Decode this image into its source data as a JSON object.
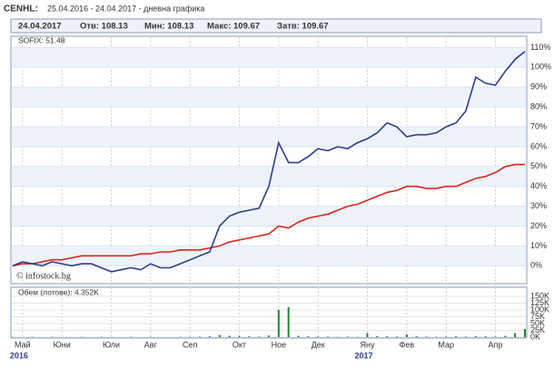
{
  "header": {
    "symbol": "CENHL:",
    "period": "25.04.2016 - 24.04.2017 - дневна графика",
    "date": "24.04.2017",
    "open": "Отв: 108.13",
    "low": "Мин: 108.13",
    "high": "Макс: 109.67",
    "close": "Затв: 109.67"
  },
  "watermark": "© infostock.bg",
  "chart_data": [
    {
      "type": "line",
      "legend_text": "SOFIX: 51.48",
      "grid": true,
      "categories": [
        null,
        "Май",
        null,
        null,
        null,
        "Юни",
        null,
        null,
        null,
        null,
        "Юли",
        null,
        null,
        null,
        "Авг",
        null,
        null,
        null,
        "Сеп",
        null,
        null,
        null,
        null,
        "Окт",
        null,
        null,
        null,
        "Ное",
        null,
        null,
        null,
        "Дек",
        null,
        null,
        null,
        null,
        "Яну",
        null,
        null,
        null,
        "Фев",
        null,
        null,
        null,
        "Мар",
        null,
        null,
        null,
        null,
        "Апр",
        null,
        null,
        null
      ],
      "year_categories": [
        null,
        "2016",
        null,
        null,
        null,
        null,
        null,
        null,
        null,
        null,
        null,
        null,
        null,
        null,
        null,
        null,
        null,
        null,
        null,
        null,
        null,
        null,
        null,
        null,
        null,
        null,
        null,
        null,
        null,
        null,
        null,
        null,
        null,
        null,
        null,
        null,
        "2017",
        null,
        null,
        null,
        null,
        null,
        null,
        null,
        null,
        null,
        null,
        null,
        null,
        null,
        null,
        null,
        null
      ],
      "ylim": [
        -9,
        112
      ],
      "yticks": [
        {
          "value": 0,
          "label": "0%"
        },
        {
          "value": 10,
          "label": "10%"
        },
        {
          "value": 20,
          "label": "20%"
        },
        {
          "value": 30,
          "label": "30%"
        },
        {
          "value": 40,
          "label": "40%"
        },
        {
          "value": 50,
          "label": "50%"
        },
        {
          "value": 60,
          "label": "60%"
        },
        {
          "value": 70,
          "label": "70%"
        },
        {
          "value": 80,
          "label": "80%"
        },
        {
          "value": 90,
          "label": "90%"
        },
        {
          "value": 100,
          "label": "100%"
        },
        {
          "value": 110,
          "label": "110%"
        }
      ],
      "series": [
        {
          "color": "#d9261c",
          "values": [
            0,
            1,
            1,
            2,
            3,
            3,
            4,
            5,
            5,
            5,
            5,
            5,
            5,
            6,
            6,
            7,
            7,
            8,
            8,
            8,
            9,
            10,
            12,
            13,
            14,
            15,
            16,
            20,
            19,
            22,
            24,
            25,
            26,
            28,
            30,
            31,
            33,
            35,
            37,
            38,
            40,
            40,
            39,
            39,
            40,
            40,
            42,
            44,
            45,
            47,
            50,
            51,
            51
          ]
        },
        {
          "color": "#2b3f8c",
          "values": [
            0,
            2,
            1,
            0,
            2,
            1,
            0,
            1,
            1,
            -1,
            -3,
            -2,
            -1,
            -2,
            1,
            -1,
            -1,
            1,
            3,
            5,
            7,
            20,
            25,
            27,
            28,
            29,
            40,
            62,
            52,
            52,
            55,
            59,
            58,
            60,
            59,
            62,
            64,
            67,
            72,
            70,
            65,
            66,
            66,
            67,
            70,
            72,
            78,
            95,
            92,
            91,
            98,
            104,
            108
          ]
        }
      ]
    },
    {
      "type": "bar",
      "title": "Обем (лотове): 4.352K",
      "color": "#1f8a2e",
      "ylim": [
        0,
        180
      ],
      "yticks": [
        {
          "value": 0,
          "label": "0K"
        },
        {
          "value": 25,
          "label": "25K"
        },
        {
          "value": 50,
          "label": "50K"
        },
        {
          "value": 75,
          "label": "75K"
        },
        {
          "value": 100,
          "label": "100K"
        },
        {
          "value": 125,
          "label": "125K"
        },
        {
          "value": 150,
          "label": "150K"
        }
      ],
      "values": [
        1,
        0,
        1,
        0,
        1,
        0,
        0,
        1,
        0,
        1,
        0,
        0,
        1,
        0,
        1,
        0,
        0,
        1,
        1,
        2,
        3,
        8,
        5,
        4,
        3,
        2,
        6,
        100,
        110,
        5,
        3,
        2,
        2,
        1,
        2,
        1,
        15,
        4,
        3,
        2,
        10,
        3,
        2,
        1,
        2,
        3,
        2,
        4,
        3,
        2,
        5,
        15,
        30
      ]
    }
  ]
}
